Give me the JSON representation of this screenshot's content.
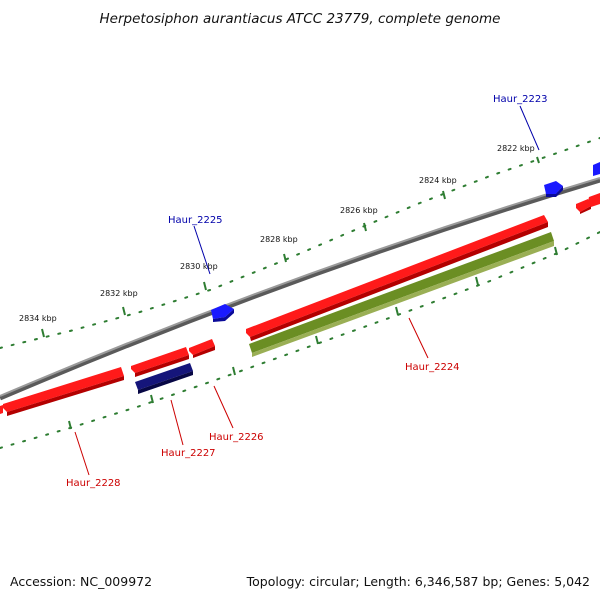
{
  "title": "Herpetosiphon aurantiacus ATCC 23779, complete genome",
  "footer": {
    "accession": "Accession: NC_009972",
    "summary": "Topology: circular; Length: 6,346,587 bp; Genes: 5,042"
  },
  "colors": {
    "backbone": "#888888",
    "forward_gene": "#ff1a1a",
    "reverse_gene": "#1a1aff",
    "navy_gene": "#15157a",
    "olive_feature": "#6b8e23",
    "tick": "#2e7d32",
    "label_forward": "#cc0000",
    "label_reverse": "#0000aa"
  },
  "ticks": [
    {
      "label": "2822 kbp"
    },
    {
      "label": "2824 kbp"
    },
    {
      "label": "2826 kbp"
    },
    {
      "label": "2828 kbp"
    },
    {
      "label": "2830 kbp"
    },
    {
      "label": "2832 kbp"
    },
    {
      "label": "2834 kbp"
    }
  ],
  "genes": [
    {
      "name": "Haur_2223",
      "strand": "reverse"
    },
    {
      "name": "Haur_2224",
      "strand": "forward"
    },
    {
      "name": "Haur_2225",
      "strand": "reverse"
    },
    {
      "name": "Haur_2226",
      "strand": "forward"
    },
    {
      "name": "Haur_2227",
      "strand": "forward"
    },
    {
      "name": "Haur_2228",
      "strand": "forward"
    }
  ]
}
